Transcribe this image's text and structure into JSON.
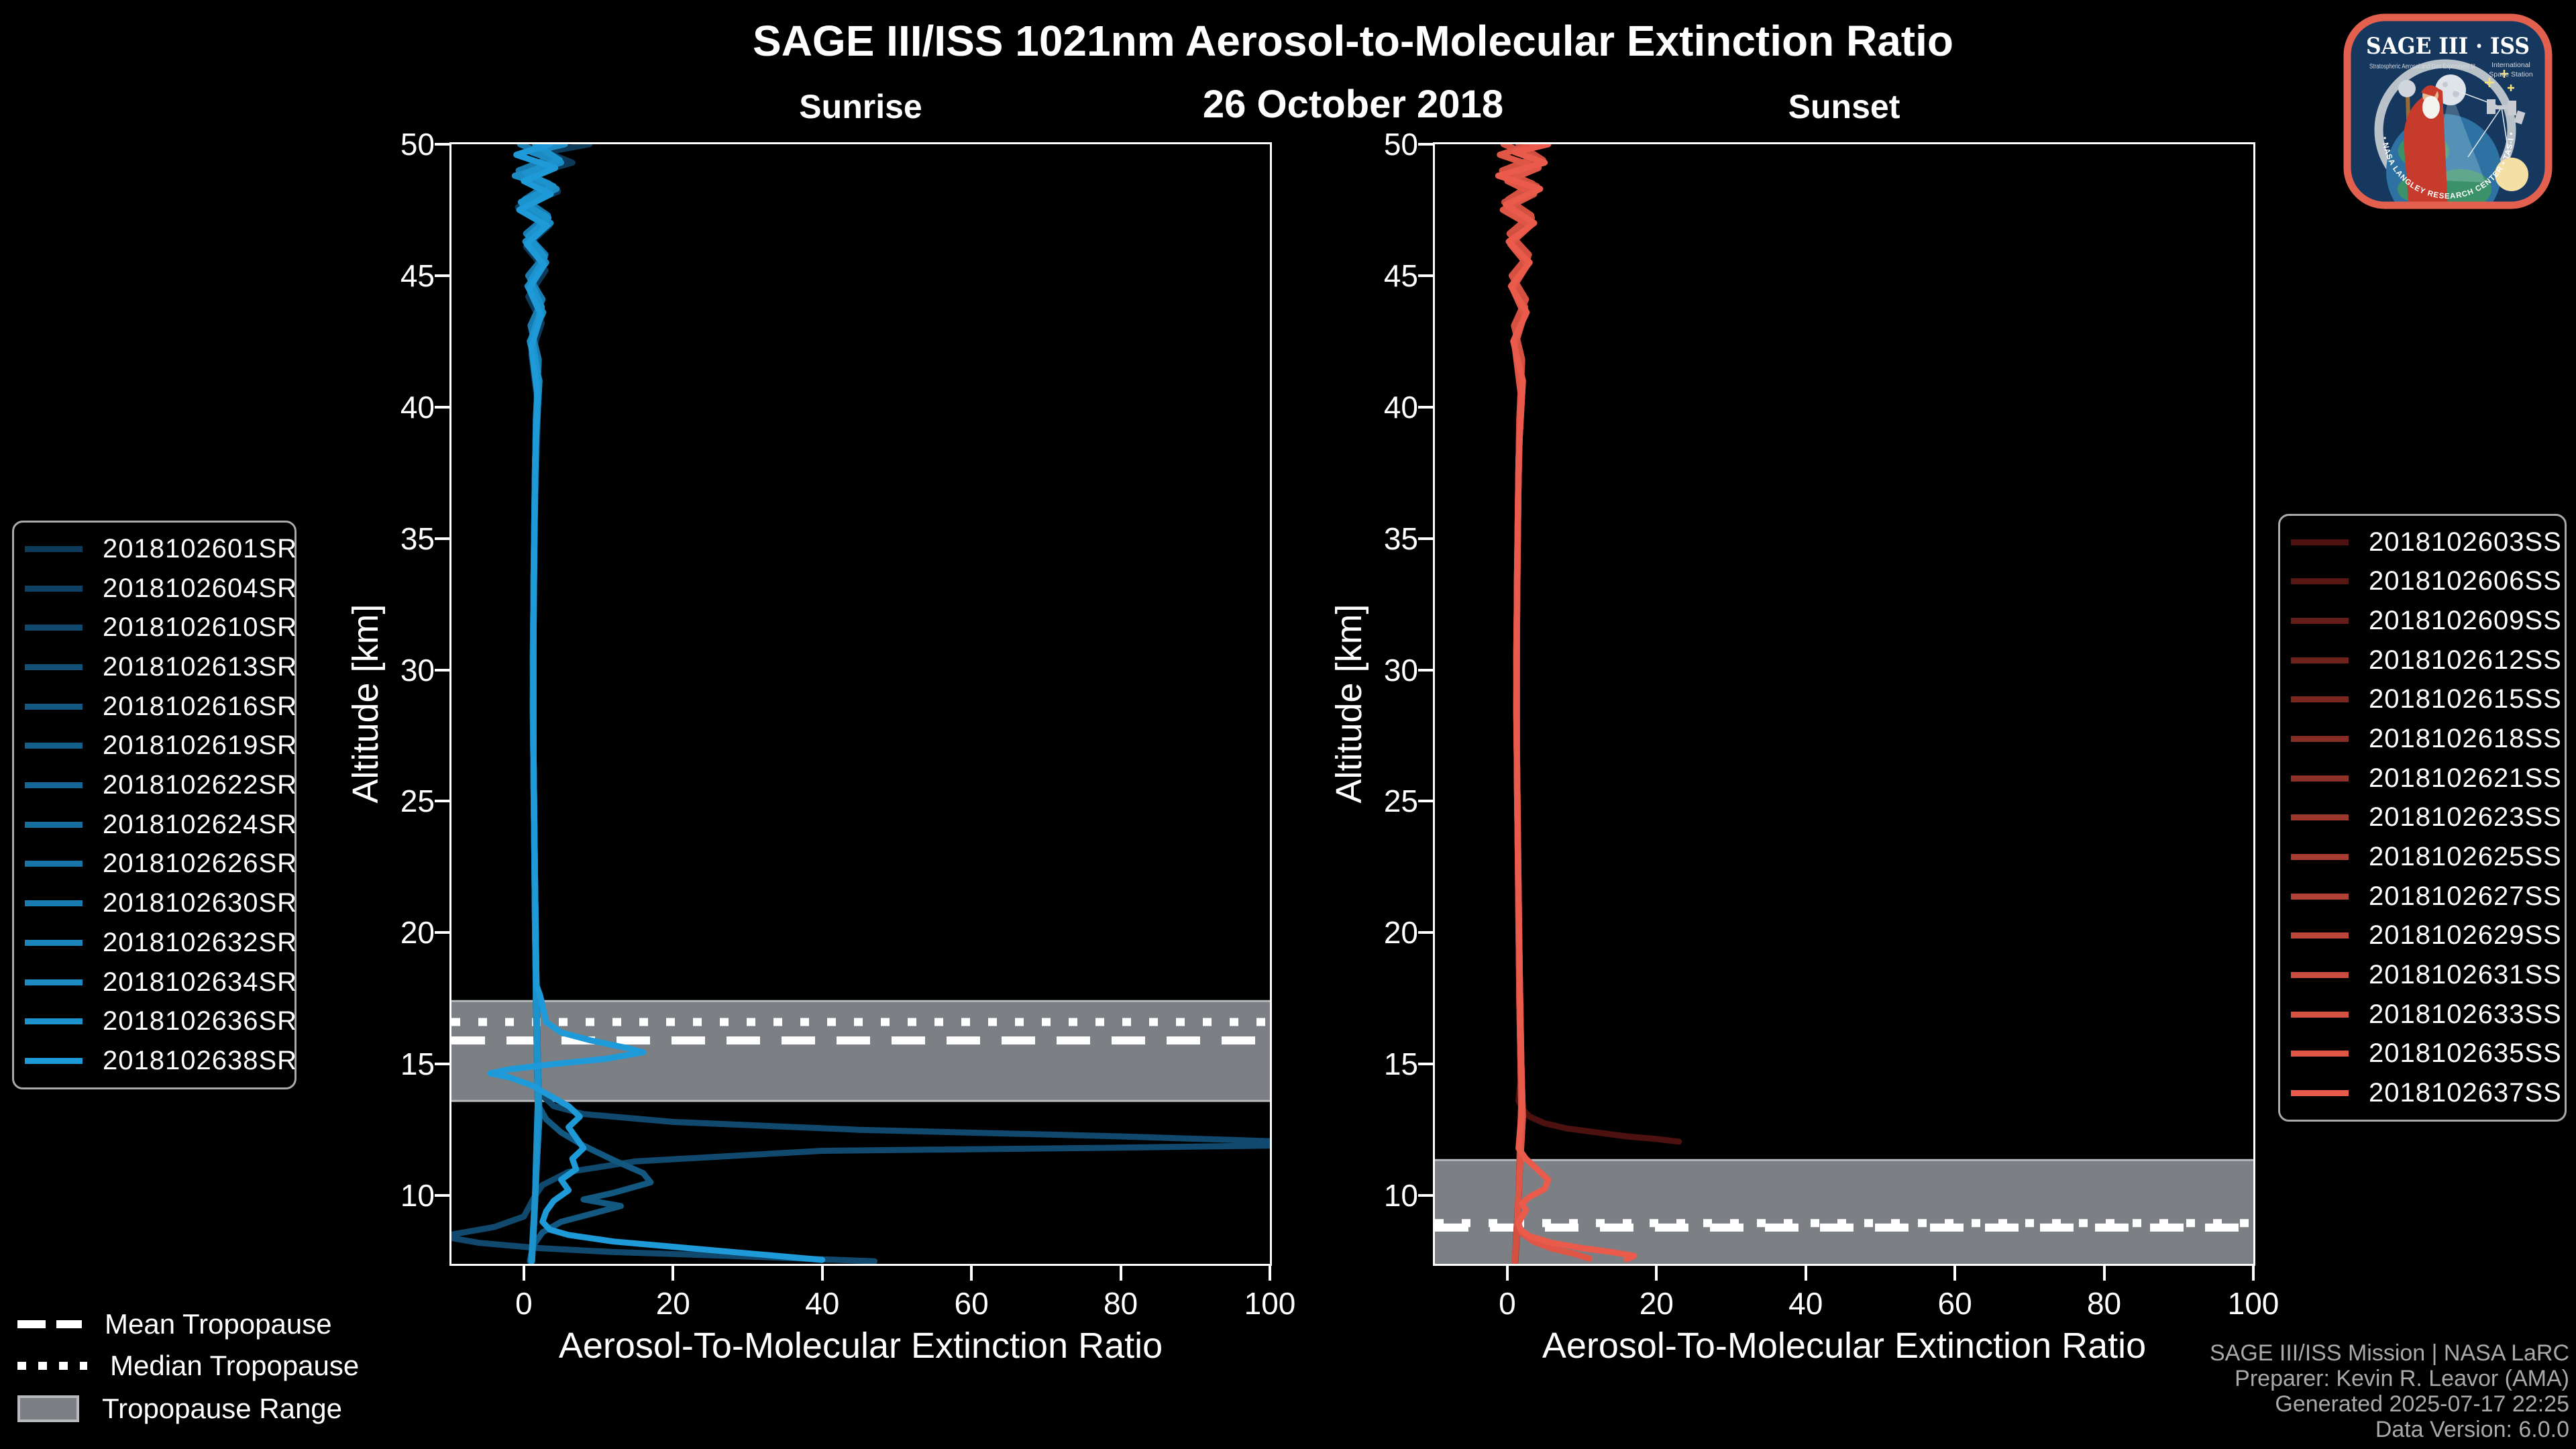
{
  "header": {
    "title": "SAGE III/ISS 1021nm Aerosol-to-Molecular Extinction Ratio",
    "date": "26 October 2018"
  },
  "footer": {
    "lines": [
      "SAGE III/ISS Mission | NASA LaRC",
      "Preparer: Kevin R. Leavor (AMA)",
      "Generated 2025-07-17 22:25",
      "Data Version: 6.0.0"
    ]
  },
  "logo": {
    "title": "SAGE III · ISS",
    "sub_left": "Stratospheric Aerosol and Gas Experiment III",
    "sub_right1": "International",
    "sub_right2": "Space Station",
    "arc_text": "BALL • NASA LANGLEY RESEARCH CENTER • TAS-I • ESA",
    "border_color": "#e2604d",
    "bg_color": "#16375e"
  },
  "tropopause_legend": {
    "items": [
      {
        "style": "dashed",
        "label": "Mean Tropopause"
      },
      {
        "style": "dotted",
        "label": "Median Tropopause"
      },
      {
        "style": "band",
        "label": "Tropopause Range"
      }
    ]
  },
  "colors": {
    "band_fill": "#7c7f84",
    "band_edge": "#b7babd",
    "tropopause_line": "#ffffff",
    "axis": "#ffffff"
  },
  "profile_patterns": {
    "A": [
      [
        3.5,
        50
      ],
      [
        -1,
        49.6
      ],
      [
        4.2,
        49.1
      ],
      [
        0,
        48.6
      ],
      [
        3.6,
        48.1
      ],
      [
        -0.6,
        47.5
      ],
      [
        3.1,
        46.9
      ],
      [
        0.4,
        46.2
      ],
      [
        2.7,
        45.4
      ],
      [
        0.7,
        44.5
      ],
      [
        2.3,
        43.5
      ],
      [
        1,
        42.3
      ],
      [
        1.8,
        40.5
      ],
      [
        1.5,
        37
      ],
      [
        1.3,
        32
      ],
      [
        1.3,
        27
      ],
      [
        1.5,
        22
      ],
      [
        1.7,
        18
      ],
      [
        1.9,
        15
      ],
      [
        2.1,
        13
      ],
      [
        1.8,
        11.5
      ],
      [
        1.4,
        9.5
      ],
      [
        1.1,
        8
      ],
      [
        1,
        7.5
      ]
    ],
    "B": [
      [
        -0.5,
        50
      ],
      [
        3.8,
        49.5
      ],
      [
        -0.7,
        49
      ],
      [
        3.4,
        48.5
      ],
      [
        0.1,
        47.9
      ],
      [
        3.2,
        47.3
      ],
      [
        0.3,
        46.6
      ],
      [
        2.9,
        45.8
      ],
      [
        0.6,
        45
      ],
      [
        2.5,
        44.1
      ],
      [
        0.9,
        43.1
      ],
      [
        2,
        41.8
      ],
      [
        1.6,
        39.5
      ],
      [
        1.4,
        35.5
      ],
      [
        1.2,
        30.5
      ],
      [
        1.3,
        25.5
      ],
      [
        1.5,
        21
      ],
      [
        1.6,
        17.5
      ],
      [
        1.8,
        14.5
      ],
      [
        1.9,
        12.5
      ],
      [
        1.6,
        10.5
      ],
      [
        1.3,
        8.8
      ],
      [
        1,
        7.5
      ]
    ],
    "C": [
      [
        5.5,
        50
      ],
      [
        1,
        49.7
      ],
      [
        5,
        49.3
      ],
      [
        -1.2,
        48.8
      ],
      [
        4.4,
        48.3
      ],
      [
        -0.2,
        47.7
      ],
      [
        3.6,
        47
      ],
      [
        0.2,
        46.3
      ],
      [
        3,
        45.5
      ],
      [
        0.5,
        44.6
      ],
      [
        2.6,
        43.6
      ],
      [
        0.8,
        42.5
      ],
      [
        2.1,
        41
      ],
      [
        1.5,
        38
      ],
      [
        1.3,
        33.5
      ],
      [
        1.2,
        28.5
      ],
      [
        1.4,
        23.5
      ],
      [
        1.6,
        19.5
      ],
      [
        1.8,
        16
      ],
      [
        2,
        13.5
      ],
      [
        1.7,
        11
      ],
      [
        1.4,
        9
      ],
      [
        1.1,
        7.5
      ]
    ],
    "D": [
      [
        1.5,
        50
      ],
      [
        4.8,
        49.4
      ],
      [
        0.2,
        48.9
      ],
      [
        4,
        48.4
      ],
      [
        -0.4,
        47.8
      ],
      [
        3.3,
        47.2
      ],
      [
        0.6,
        46.5
      ],
      [
        2.8,
        45.7
      ],
      [
        0.9,
        44.8
      ],
      [
        2.4,
        43.8
      ],
      [
        1.1,
        42.7
      ],
      [
        1.9,
        41.2
      ],
      [
        1.6,
        39
      ],
      [
        1.4,
        34.5
      ],
      [
        1.25,
        29.5
      ],
      [
        1.35,
        24.5
      ],
      [
        1.5,
        20
      ],
      [
        1.7,
        16.5
      ],
      [
        1.9,
        13.8
      ],
      [
        1.7,
        12
      ],
      [
        1.5,
        10
      ],
      [
        1.2,
        8.3
      ],
      [
        1,
        7.5
      ]
    ],
    "E": [
      [
        8.8,
        50
      ],
      [
        3,
        49.7
      ],
      [
        6.5,
        49.3
      ],
      [
        0.5,
        48.8
      ],
      [
        4.6,
        48.2
      ],
      [
        -0.8,
        47.6
      ],
      [
        3.4,
        46.9
      ],
      [
        0.3,
        46.1
      ],
      [
        2.9,
        45.2
      ],
      [
        0.6,
        44.2
      ],
      [
        2.4,
        43.2
      ],
      [
        1,
        42
      ],
      [
        1.9,
        40
      ],
      [
        1.5,
        36
      ],
      [
        1.3,
        31
      ],
      [
        1.3,
        26
      ],
      [
        1.5,
        21.5
      ],
      [
        1.7,
        17.8
      ],
      [
        1.9,
        14.8
      ],
      [
        2,
        12.8
      ],
      [
        1.7,
        10.8
      ],
      [
        1.4,
        9
      ],
      [
        1.1,
        7.5
      ]
    ]
  },
  "chart_data": [
    {
      "type": "line",
      "title": "Sunrise",
      "xlabel": "Aerosol-To-Molecular Extinction Ratio",
      "ylabel": "Altitude [km]",
      "xlim": [
        -9.7,
        100
      ],
      "ylim": [
        7.4,
        50
      ],
      "xticks": [
        0,
        20,
        40,
        60,
        80,
        100
      ],
      "yticks": [
        50,
        45,
        40,
        35,
        30,
        25,
        20,
        15,
        10
      ],
      "grid": false,
      "tropopause": {
        "band": [
          13.6,
          17.4
        ],
        "median": 16.6,
        "mean": 15.9
      },
      "series": [
        {
          "name": "2018102601SR",
          "color": "#0e3a5a",
          "top": "E",
          "pts": []
        },
        {
          "name": "2018102604SR",
          "color": "#0f4164",
          "top": "A",
          "pts": []
        },
        {
          "name": "2018102610SR",
          "color": "#10496d",
          "top": "B",
          "pts": [
            [
              2,
              14
            ],
            [
              2.5,
              13.8
            ],
            [
              4,
              13.4
            ],
            [
              8,
              13.1
            ],
            [
              20,
              12.8
            ],
            [
              45,
              12.5
            ],
            [
              80,
              12.25
            ],
            [
              113,
              11.95
            ],
            [
              80,
              11.82
            ],
            [
              40,
              11.7
            ],
            [
              15,
              11.3
            ],
            [
              6,
              10.9
            ],
            [
              2.5,
              10.4
            ],
            [
              1.5,
              10
            ],
            [
              0,
              9.2
            ],
            [
              -4,
              8.8
            ],
            [
              -11,
              8.45
            ],
            [
              -6,
              8.2
            ],
            [
              2,
              8
            ],
            [
              12,
              7.85
            ],
            [
              28,
              7.7
            ],
            [
              47,
              7.5
            ]
          ]
        },
        {
          "name": "2018102613SR",
          "color": "#125077",
          "top": "C",
          "pts": []
        },
        {
          "name": "2018102616SR",
          "color": "#135881",
          "top": "D",
          "pts": [
            [
              2,
              13.4
            ],
            [
              3,
              12.9
            ],
            [
              5,
              12.4
            ],
            [
              8,
              11.9
            ],
            [
              12,
              11.35
            ],
            [
              16,
              10.85
            ],
            [
              17,
              10.5
            ],
            [
              12,
              10.1
            ],
            [
              8,
              9.85
            ],
            [
              13,
              9.6
            ],
            [
              9,
              9.3
            ],
            [
              5,
              9
            ],
            [
              2.5,
              8.6
            ],
            [
              1.5,
              8.2
            ],
            [
              1,
              7.8
            ],
            [
              0.8,
              7.5
            ]
          ]
        },
        {
          "name": "2018102619SR",
          "color": "#145f8a",
          "top": "B",
          "pts": []
        },
        {
          "name": "2018102622SR",
          "color": "#156694",
          "top": "A",
          "pts": []
        },
        {
          "name": "2018102624SR",
          "color": "#176e9e",
          "top": "C",
          "pts": []
        },
        {
          "name": "2018102626SR",
          "color": "#1875a7",
          "top": "D",
          "pts": []
        },
        {
          "name": "2018102630SR",
          "color": "#197cb1",
          "top": "B",
          "pts": []
        },
        {
          "name": "2018102632SR",
          "color": "#1a84bb",
          "top": "A",
          "pts": []
        },
        {
          "name": "2018102634SR",
          "color": "#1c8bc4",
          "top": "C",
          "pts": []
        },
        {
          "name": "2018102636SR",
          "color": "#1d93ce",
          "top": "D",
          "pts": []
        },
        {
          "name": "2018102638SR",
          "color": "#1e9ad8",
          "top": "A",
          "pts": [
            [
              2.2,
              17.6
            ],
            [
              2.6,
              17.1
            ],
            [
              3,
              16.6
            ],
            [
              5,
              16.2
            ],
            [
              9,
              15.9
            ],
            [
              14,
              15.6
            ],
            [
              16,
              15.45
            ],
            [
              11,
              15.2
            ],
            [
              4,
              15
            ],
            [
              -2,
              14.8
            ],
            [
              -4.5,
              14.65
            ],
            [
              -2,
              14.5
            ],
            [
              1,
              14.2
            ],
            [
              3.5,
              13.8
            ],
            [
              6,
              13.4
            ],
            [
              7.5,
              13
            ],
            [
              6,
              12.6
            ],
            [
              7,
              12.2
            ],
            [
              8,
              11.8
            ],
            [
              6.5,
              11.4
            ],
            [
              7,
              11
            ],
            [
              5,
              10.6
            ],
            [
              6,
              10.2
            ],
            [
              4,
              9.8
            ],
            [
              3,
              9.4
            ],
            [
              2.5,
              9
            ],
            [
              3.5,
              8.7
            ],
            [
              6,
              8.5
            ],
            [
              12,
              8.25
            ],
            [
              20,
              8.05
            ],
            [
              30,
              7.8
            ],
            [
              40,
              7.55
            ]
          ]
        }
      ]
    },
    {
      "type": "line",
      "title": "Sunset",
      "xlabel": "Aerosol-To-Molecular Extinction Ratio",
      "ylabel": "Altitude [km]",
      "xlim": [
        -9.7,
        100
      ],
      "ylim": [
        7.4,
        50
      ],
      "xticks": [
        0,
        20,
        40,
        60,
        80,
        100
      ],
      "yticks": [
        50,
        45,
        40,
        35,
        30,
        25,
        20,
        15,
        10
      ],
      "grid": false,
      "tropopause": {
        "band": [
          7.4,
          11.35
        ],
        "median": 8.95,
        "mean": 8.78
      },
      "series": [
        {
          "name": "2018102603SS",
          "color": "#4d120f",
          "top": "B",
          "pts": [
            [
              1.5,
              13.6
            ],
            [
              2,
              13.3
            ],
            [
              3,
              13
            ],
            [
              5,
              12.75
            ],
            [
              8,
              12.55
            ],
            [
              12,
              12.4
            ],
            [
              16,
              12.25
            ],
            [
              20,
              12.15
            ],
            [
              23,
              12.05
            ]
          ]
        },
        {
          "name": "2018102606SS",
          "color": "#581713",
          "top": "A",
          "pts": []
        },
        {
          "name": "2018102609SS",
          "color": "#631c18",
          "top": "C",
          "pts": []
        },
        {
          "name": "2018102612SS",
          "color": "#6f221c",
          "top": "D",
          "pts": []
        },
        {
          "name": "2018102615SS",
          "color": "#7a2720",
          "top": "B",
          "pts": []
        },
        {
          "name": "2018102618SS",
          "color": "#852c24",
          "top": "A",
          "pts": []
        },
        {
          "name": "2018102621SS",
          "color": "#903129",
          "top": "C",
          "pts": []
        },
        {
          "name": "2018102623SS",
          "color": "#9c372d",
          "top": "D",
          "pts": []
        },
        {
          "name": "2018102625SS",
          "color": "#a73c31",
          "top": "B",
          "pts": []
        },
        {
          "name": "2018102627SS",
          "color": "#b24135",
          "top": "A",
          "pts": []
        },
        {
          "name": "2018102629SS",
          "color": "#bd463a",
          "top": "C",
          "pts": []
        },
        {
          "name": "2018102631SS",
          "color": "#c94c3e",
          "top": "D",
          "pts": []
        },
        {
          "name": "2018102633SS",
          "color": "#d45142",
          "top": "B",
          "pts": []
        },
        {
          "name": "2018102635SS",
          "color": "#df5647",
          "top": "A",
          "pts": [
            [
              1.4,
              8.9
            ],
            [
              2,
              8.55
            ],
            [
              3.5,
              8.25
            ],
            [
              6,
              7.98
            ],
            [
              9,
              7.78
            ],
            [
              11,
              7.6
            ]
          ]
        },
        {
          "name": "2018102637SS",
          "color": "#ea5b4b",
          "top": "C",
          "pts": [
            [
              1.5,
              11.8
            ],
            [
              2.5,
              11.4
            ],
            [
              4,
              11
            ],
            [
              5.5,
              10.6
            ],
            [
              5,
              10.25
            ],
            [
              3,
              9.95
            ],
            [
              2,
              9.7
            ],
            [
              2.5,
              9.45
            ],
            [
              2,
              9.2
            ],
            [
              1.5,
              8.95
            ],
            [
              1.8,
              8.7
            ],
            [
              3,
              8.45
            ],
            [
              6,
              8.2
            ],
            [
              10,
              8
            ],
            [
              14,
              7.85
            ],
            [
              17,
              7.7
            ],
            [
              16,
              7.58
            ]
          ]
        }
      ]
    }
  ]
}
